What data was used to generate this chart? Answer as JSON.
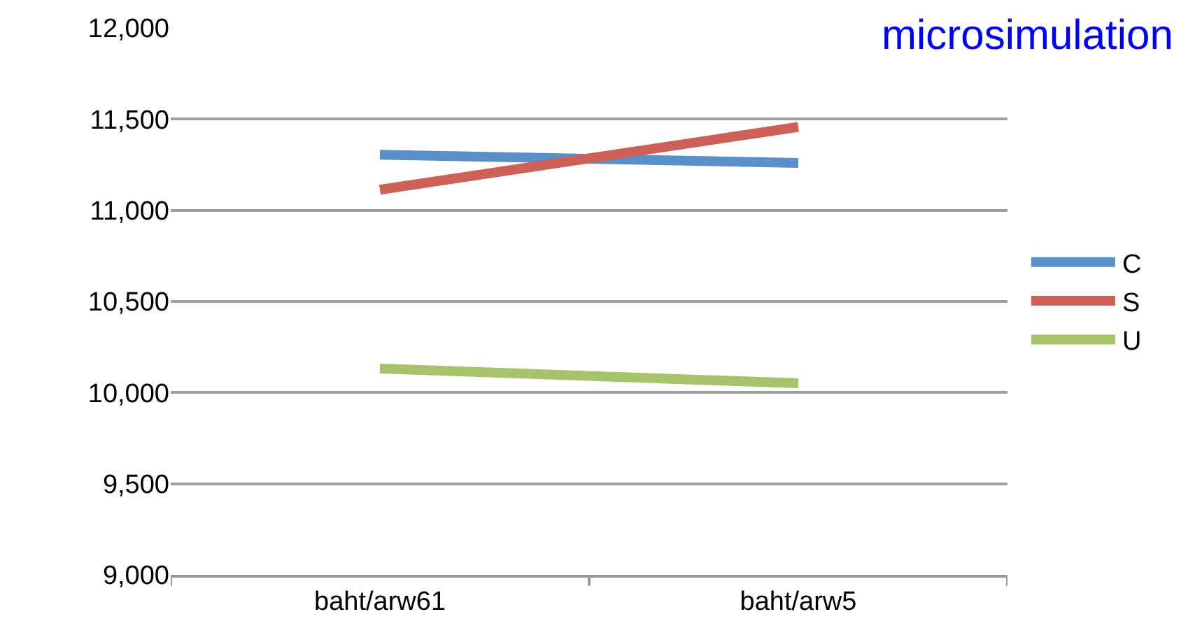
{
  "chart_data": {
    "type": "line",
    "categories": [
      "baht/arw61",
      "baht/arw5"
    ],
    "series": [
      {
        "name": "C",
        "color": "#5b8fc7",
        "values": [
          11305,
          11260
        ]
      },
      {
        "name": "S",
        "color": "#cd6157",
        "values": [
          11113,
          11457
        ]
      },
      {
        "name": "U",
        "color": "#a6c26a",
        "values": [
          10132,
          10051
        ]
      }
    ],
    "ylim": [
      9000,
      12000
    ],
    "yticks": [
      {
        "value": 9000,
        "label": "9,000"
      },
      {
        "value": 9500,
        "label": "9,500"
      },
      {
        "value": 10000,
        "label": "10,000"
      },
      {
        "value": 10500,
        "label": "10,500"
      },
      {
        "value": 11000,
        "label": "11,000"
      },
      {
        "value": 11500,
        "label": "11,500"
      },
      {
        "value": 12000,
        "label": "12,000"
      }
    ],
    "grid": "y",
    "legend": "right",
    "marker": "none",
    "line_style": "solid",
    "annotations": [
      "microsimulation"
    ]
  }
}
